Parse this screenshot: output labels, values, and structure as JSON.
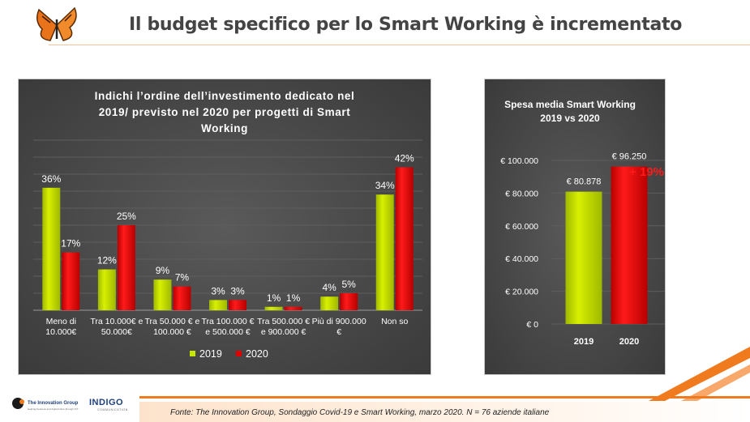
{
  "page": {
    "title": "Il budget specifico per lo Smart Working è incrementato",
    "source": "Fonte: The Innovation Group, Sondaggio Covid-19 e Smart Working, marzo 2020. N = 76  aziende italiane",
    "logo1_label": "The Innovation Group",
    "logo1_tagline": "Helping business and digital future through ICT",
    "logo2_label": "INDIGO",
    "logo2_sub": "COMMUNICATION",
    "colors": {
      "y2019": "#c6e600",
      "y2020": "#e00000",
      "accent": "#f07a1e",
      "panel": "#444444"
    }
  },
  "chart_data": [
    {
      "type": "bar",
      "title": "Indichi l’ordine dell’investimento dedicato nel 2019/ previsto nel 2020 per progetti di Smart Working",
      "title_lines": [
        "Indichi l’ordine dell’investimento dedicato nel",
        "2019/ previsto nel 2020 per progetti di Smart",
        "Working"
      ],
      "categories": [
        [
          "Meno di",
          "10.000€"
        ],
        [
          "Tra 10.000€ e",
          "50.000€"
        ],
        [
          "Tra 50.000 € e",
          "100.000 €"
        ],
        [
          "Tra 100.000 €",
          "e 500.000 €"
        ],
        [
          "Tra 500.000 €",
          "e 900.000 €"
        ],
        [
          "Più di 900.000",
          "€"
        ],
        [
          "Non so"
        ]
      ],
      "series": [
        {
          "name": "2019",
          "values": [
            36,
            12,
            9,
            3,
            1,
            4,
            34
          ],
          "labels": [
            "36%",
            "12%",
            "9%",
            "3%",
            "1%",
            "4%",
            "34%"
          ]
        },
        {
          "name": "2020",
          "values": [
            17,
            25,
            7,
            3,
            1,
            5,
            42
          ],
          "labels": [
            "17%",
            "25%",
            "7%",
            "3%",
            "1%",
            "5%",
            "42%"
          ]
        }
      ],
      "ylim": [
        0,
        50
      ],
      "grid": true,
      "legend": "bottom"
    },
    {
      "type": "bar",
      "title": "Spesa media Smart Working 2019 vs 2020",
      "title_lines": [
        "Spesa media Smart Working",
        "2019 vs 2020"
      ],
      "categories": [
        "2019",
        "2020"
      ],
      "values": [
        80878,
        96250
      ],
      "value_labels": [
        "€ 80.878",
        "€ 96.250"
      ],
      "yticks": [
        0,
        20000,
        40000,
        60000,
        80000,
        100000
      ],
      "ytick_labels": [
        "€ 0",
        "€ 20.000",
        "€ 40.000",
        "€ 60.000",
        "€ 80.000",
        "€ 100.000"
      ],
      "ylim": [
        0,
        100000
      ],
      "annotation": "+ 19%",
      "grid": true
    }
  ]
}
